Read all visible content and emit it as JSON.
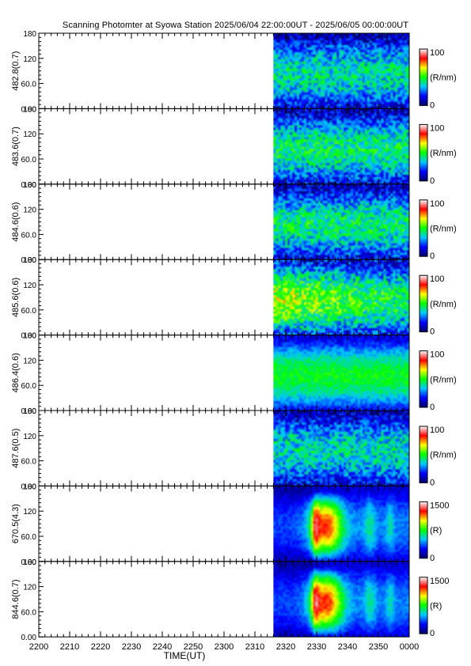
{
  "title": "Scanning Photomter at Syowa Station 2025/06/04 22:00:00UT - 2025/06/05 00:00:00UT",
  "chart_data": {
    "type": "heatmap",
    "xlabel": "TIME(UT)",
    "x_tick_labels": [
      "2200",
      "2210",
      "2220",
      "2230",
      "2240",
      "2250",
      "2300",
      "2310",
      "2320",
      "2330",
      "2340",
      "2350",
      "0000"
    ],
    "x_range_minutes": [
      0,
      120
    ],
    "data_start_minutes": 76,
    "y_tick_labels": [
      "0.00",
      "60.0",
      "120",
      "180"
    ],
    "ylim": [
      0,
      180
    ],
    "colormap": [
      "#000066",
      "#0000ff",
      "#00c8ff",
      "#00ff00",
      "#ffff00",
      "#ff0000",
      "#ffffff"
    ],
    "panels": [
      {
        "ylabel": "482.8(0.7)",
        "colorbar_max": "100",
        "colorbar_zero": "0",
        "unit": "(R/nm)",
        "level": 0.33,
        "pattern": "faint"
      },
      {
        "ylabel": "483.6(0.7)",
        "colorbar_max": "100",
        "colorbar_zero": "0",
        "unit": "(R/nm)",
        "level": 0.36,
        "pattern": "faint"
      },
      {
        "ylabel": "484.6(0.6)",
        "colorbar_max": "100",
        "colorbar_zero": "0",
        "unit": "(R/nm)",
        "level": 0.36,
        "pattern": "faint"
      },
      {
        "ylabel": "485.6(0.6)",
        "colorbar_max": "100",
        "colorbar_zero": "0",
        "unit": "(R/nm)",
        "level": 0.48,
        "pattern": "bright"
      },
      {
        "ylabel": "486.4(0.6)",
        "colorbar_max": "100",
        "colorbar_zero": "0",
        "unit": "(R/nm)",
        "level": 0.4,
        "pattern": "smooth"
      },
      {
        "ylabel": "487.6(0.5)",
        "colorbar_max": "100",
        "colorbar_zero": "0",
        "unit": "(R/nm)",
        "level": 0.32,
        "pattern": "faint"
      },
      {
        "ylabel": "670.5(4.3)",
        "colorbar_max": "1500",
        "colorbar_zero": "0",
        "unit": "(R)",
        "level": 0.42,
        "pattern": "aurora"
      },
      {
        "ylabel": "844.6(0.7)",
        "colorbar_max": "1500",
        "colorbar_zero": "0",
        "unit": "(R)",
        "level": 0.42,
        "pattern": "aurora"
      }
    ]
  }
}
